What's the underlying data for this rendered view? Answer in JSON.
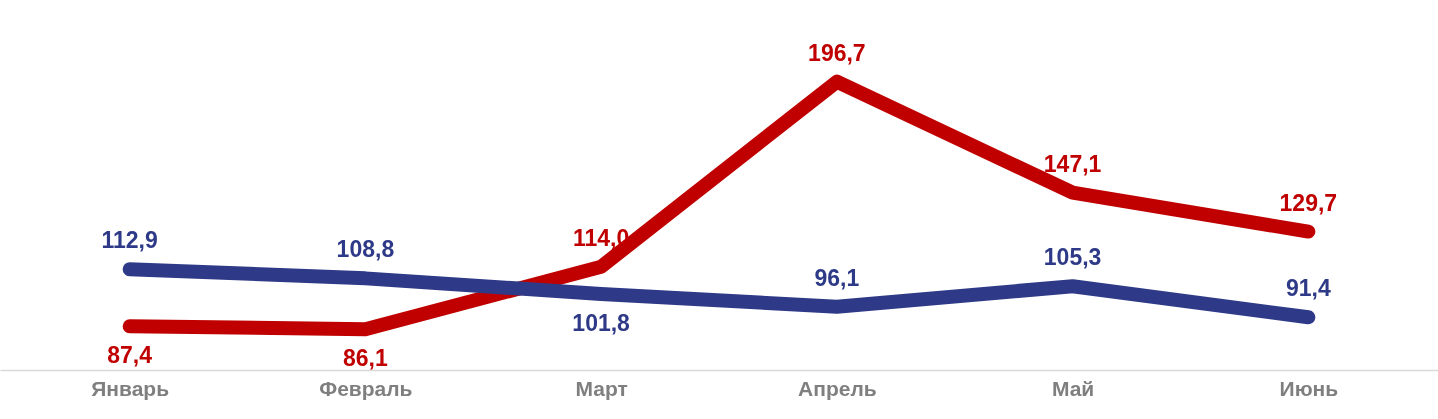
{
  "chart_data": {
    "type": "line",
    "categories": [
      "Январь",
      "Февраль",
      "Март",
      "Апрель",
      "Май",
      "Июнь"
    ],
    "series": [
      {
        "color": "#c00000",
        "values": [
          87.4,
          86.1,
          114.0,
          196.7,
          147.1,
          129.7
        ],
        "value_labels": [
          "87,4",
          "86,1",
          "114,0",
          "196,7",
          "147,1",
          "129,7"
        ]
      },
      {
        "color": "#2e3a87",
        "values": [
          112.9,
          108.8,
          101.8,
          96.1,
          105.3,
          91.4
        ],
        "value_labels": [
          "112,9",
          "108,8",
          "101,8",
          "96,1",
          "105,3",
          "91,4"
        ]
      }
    ],
    "grid": false,
    "marker": "none",
    "line_style": "solid"
  }
}
